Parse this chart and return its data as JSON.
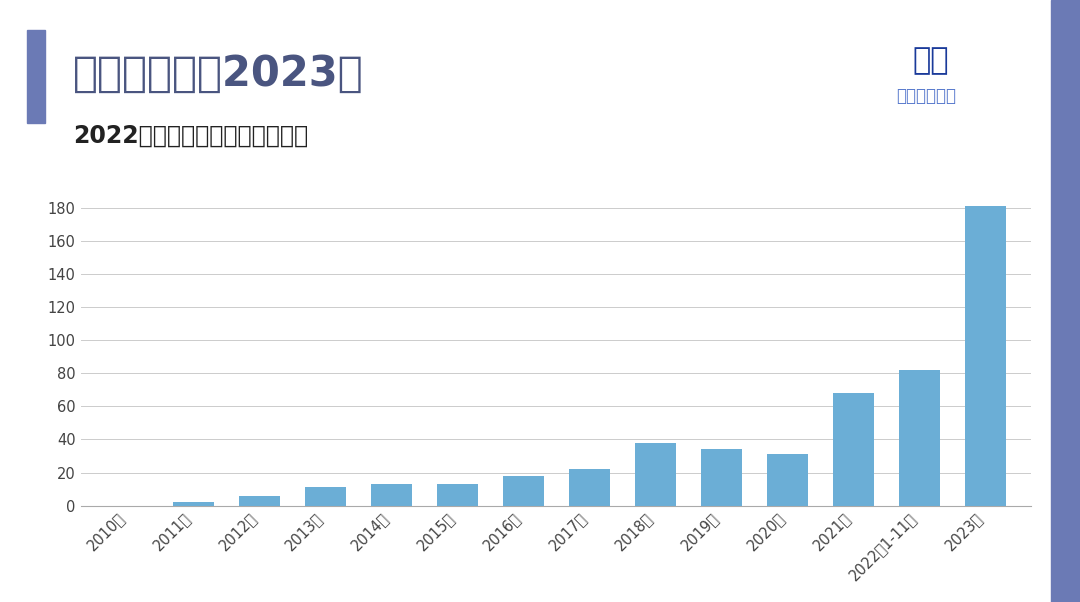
{
  "categories": [
    "2010年",
    "2011年",
    "2012年",
    "2013年",
    "2014年",
    "2015年",
    "2016年",
    "2017年",
    "2018年",
    "2019年",
    "2020年",
    "2021年",
    "2022年1-11月",
    "2023年"
  ],
  "values": [
    0,
    2,
    6,
    11,
    13,
    13,
    18,
    22,
    38,
    34,
    31,
    68,
    82,
    181
  ],
  "bar_color": "#6baed6",
  "background_color": "#ffffff",
  "title": "展望美国市场2023年",
  "subtitle": "2022年的美国市场是值得期待的",
  "title_color": "#4a5580",
  "subtitle_color": "#222222",
  "accent_rect_color": "#6b7ab5",
  "right_sidebar_color": "#6b7ab5",
  "ylim": [
    0,
    200
  ],
  "yticks": [
    0,
    20,
    40,
    60,
    80,
    100,
    120,
    140,
    160,
    180
  ],
  "grid_color": "#cccccc",
  "axis_color": "#aaaaaa",
  "title_fontsize": 30,
  "subtitle_fontsize": 17,
  "tick_fontsize": 10.5,
  "logo_text_color": "#1a3a9a",
  "logo_sub_color": "#5577cc"
}
